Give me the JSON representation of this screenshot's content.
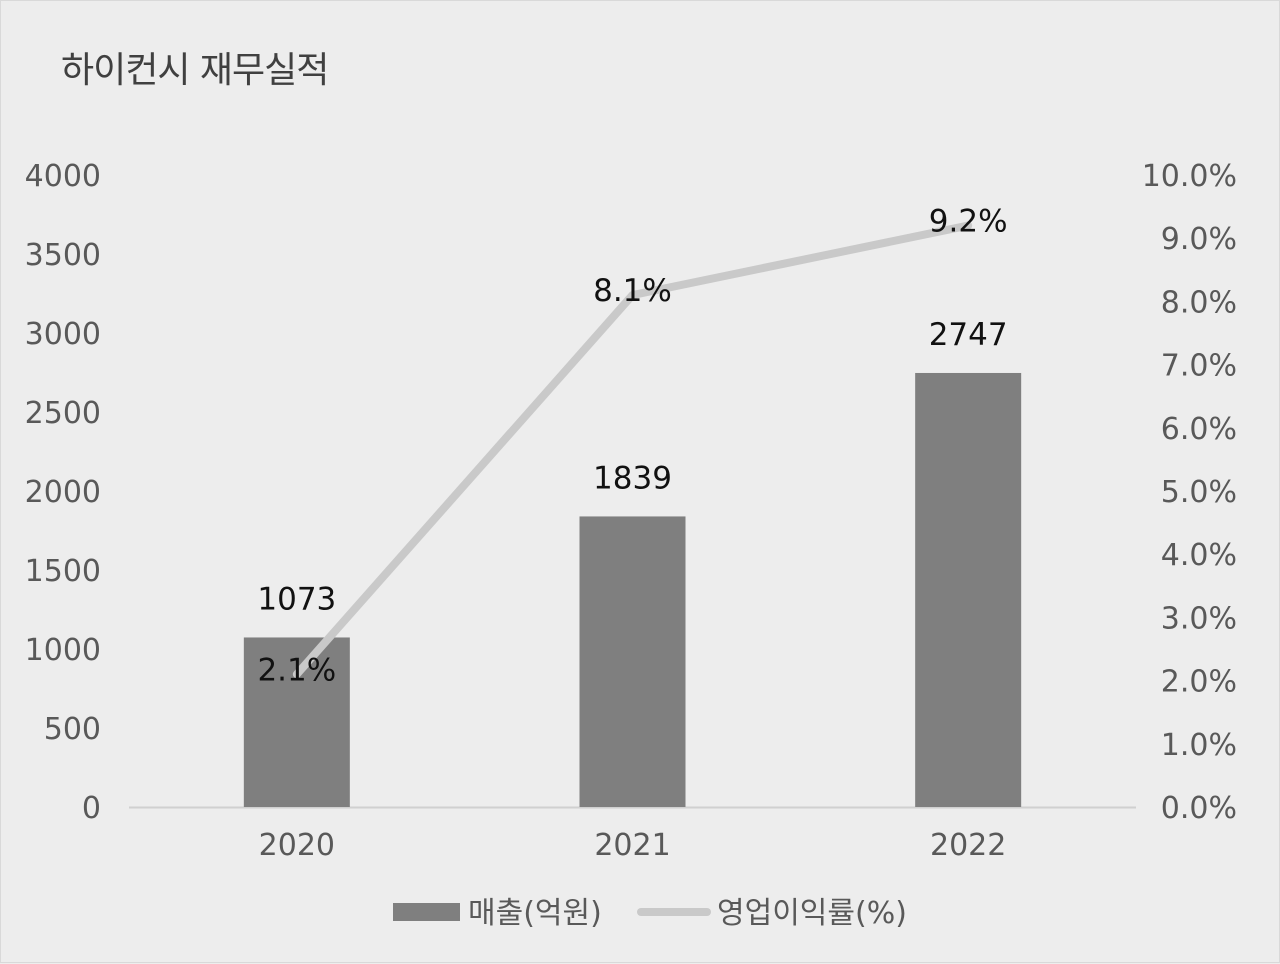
{
  "chart_data": {
    "type": "bar",
    "title": "하이컨시 재무실적",
    "categories": [
      "2020",
      "2021",
      "2022"
    ],
    "series": [
      {
        "name": "매출(억원)",
        "type": "bar",
        "axis": "left",
        "color": "#7f7f7f",
        "values": [
          1073,
          1839,
          2747
        ],
        "labels": [
          "1073",
          "1839",
          "2747"
        ]
      },
      {
        "name": "영업이익률(%)",
        "type": "line",
        "axis": "right",
        "color": "#c9c9c9",
        "values": [
          2.1,
          8.1,
          9.2
        ],
        "labels": [
          "2.1%",
          "8.1%",
          "9.2%"
        ]
      }
    ],
    "y_left": {
      "min": 0,
      "max": 4000,
      "ticks": [
        "0",
        "500",
        "1000",
        "1500",
        "2000",
        "2500",
        "3000",
        "3500",
        "4000"
      ]
    },
    "y_right": {
      "min": 0,
      "max": 10,
      "ticks": [
        "0.0%",
        "1.0%",
        "2.0%",
        "3.0%",
        "4.0%",
        "5.0%",
        "6.0%",
        "7.0%",
        "8.0%",
        "9.0%",
        "10.0%"
      ]
    },
    "grid": false,
    "legend_position": "bottom"
  }
}
